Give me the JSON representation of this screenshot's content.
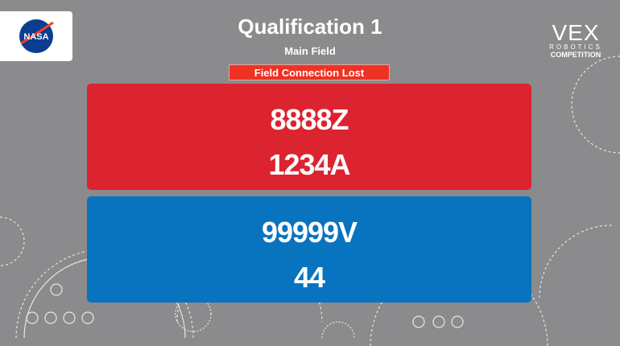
{
  "header": {
    "title": "Qualification 1",
    "field": "Main Field",
    "status": "Field Connection Lost"
  },
  "logos": {
    "left": "NASA",
    "right_main": "VEX",
    "right_sub1": "ROBOTICS",
    "right_sub2": "COMPETITION"
  },
  "alliances": {
    "red": {
      "teams": [
        "8888Z",
        "1234A"
      ],
      "color": "#db2430"
    },
    "blue": {
      "teams": [
        "99999V",
        "44"
      ],
      "color": "#0873bf"
    }
  }
}
